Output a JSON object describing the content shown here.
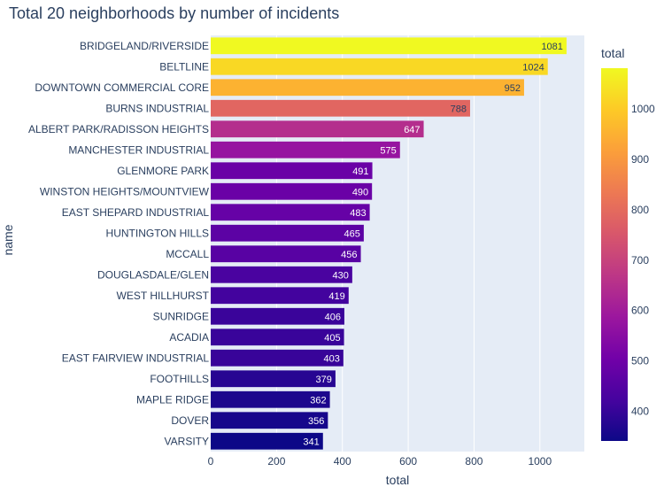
{
  "chart_data": {
    "type": "bar",
    "orientation": "horizontal",
    "title": "Total 20 neighborhoods by number of incidents",
    "xlabel": "total",
    "ylabel": "name",
    "xlim": [
      0,
      1135
    ],
    "xticks": [
      0,
      200,
      400,
      600,
      800,
      1000
    ],
    "grid": true,
    "categories": [
      "BRIDGELAND/RIVERSIDE",
      "BELTLINE",
      "DOWNTOWN COMMERCIAL CORE",
      "BURNS INDUSTRIAL",
      "ALBERT PARK/RADISSON HEIGHTS",
      "MANCHESTER INDUSTRIAL",
      "GLENMORE PARK",
      "WINSTON HEIGHTS/MOUNTVIEW",
      "EAST SHEPARD INDUSTRIAL",
      "HUNTINGTON HILLS",
      "MCCALL",
      "DOUGLASDALE/GLEN",
      "WEST HILLHURST",
      "SUNRIDGE",
      "ACADIA",
      "EAST FAIRVIEW INDUSTRIAL",
      "FOOTHILLS",
      "MAPLE RIDGE",
      "DOVER",
      "VARSITY"
    ],
    "values": [
      1081,
      1024,
      952,
      788,
      647,
      575,
      491,
      490,
      483,
      465,
      456,
      430,
      419,
      406,
      405,
      403,
      379,
      362,
      356,
      341
    ],
    "colorbar": {
      "title": "total",
      "min": 341,
      "max": 1081,
      "ticks": [
        400,
        500,
        600,
        700,
        800,
        900,
        1000
      ],
      "colorscale": [
        "#0d0887",
        "#46039f",
        "#7201a8",
        "#9c179e",
        "#bd3786",
        "#d8576b",
        "#ed7953",
        "#fb9f3a",
        "#fdca26",
        "#f0f921"
      ]
    },
    "colors": {
      "plot_bg": "#e5ecf6",
      "grid": "#ffffff",
      "text": "#2a3f5f"
    }
  }
}
